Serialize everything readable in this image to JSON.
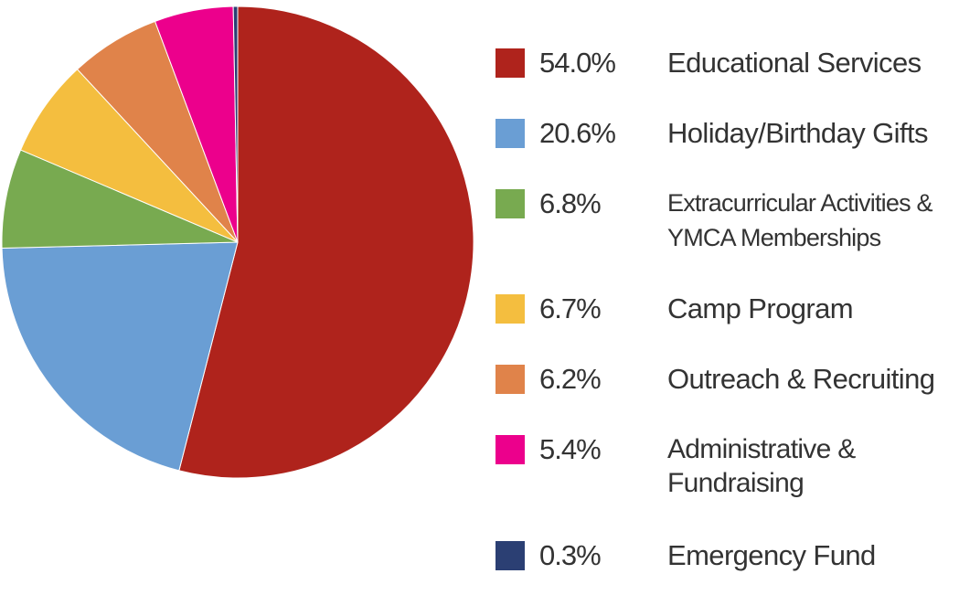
{
  "chart_data": {
    "type": "pie",
    "legend_position": "right",
    "slices": [
      {
        "label": "Educational Services",
        "pct_label": "54.0%",
        "value": 54.0,
        "color": "#AF231C"
      },
      {
        "label": "Holiday/Birthday Gifts",
        "pct_label": "20.6%",
        "value": 20.6,
        "color": "#6A9ED4"
      },
      {
        "label": "Extracurricular Activities & YMCA Memberships",
        "pct_label": "6.8%",
        "value": 6.8,
        "color": "#78AA50"
      },
      {
        "label": "Camp Program",
        "pct_label": "6.7%",
        "value": 6.7,
        "color": "#F4BE3F"
      },
      {
        "label": "Outreach & Recruiting",
        "pct_label": "6.2%",
        "value": 6.2,
        "color": "#E0834A"
      },
      {
        "label": "Administrative & Fundraising",
        "pct_label": "5.4%",
        "value": 5.4,
        "color": "#EC008C"
      },
      {
        "label": "Emergency Fund",
        "pct_label": "0.3%",
        "value": 0.3,
        "color": "#2B3F73"
      }
    ]
  },
  "legend": {
    "items": [
      {
        "pct": "54.0%",
        "label": "Educational Services"
      },
      {
        "pct": "20.6%",
        "label": "Holiday/Birthday Gifts"
      },
      {
        "pct": "6.8%",
        "label_line1": "Extracurricular Activities &",
        "label_line2": "YMCA Memberships"
      },
      {
        "pct": "6.7%",
        "label": "Camp Program"
      },
      {
        "pct": "6.2%",
        "label": "Outreach & Recruiting"
      },
      {
        "pct": "5.4%",
        "label_line1": "Administrative &",
        "label_line2": "Fundraising"
      },
      {
        "pct": "0.3%",
        "label": "Emergency Fund"
      }
    ]
  }
}
